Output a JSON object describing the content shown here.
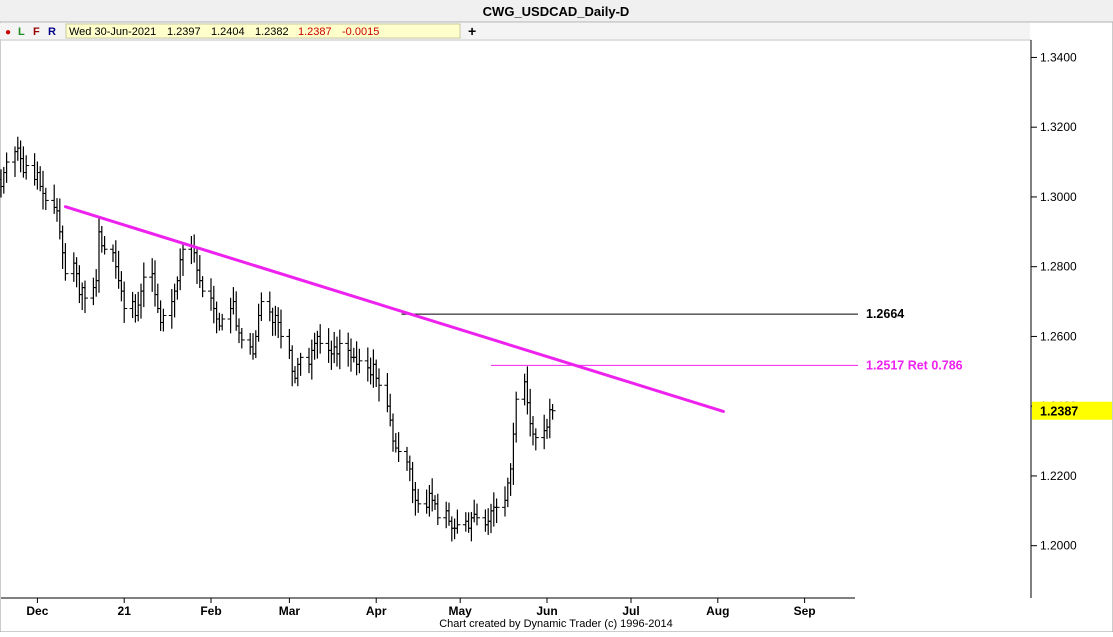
{
  "window": {
    "title": "CWG_USDCAD_Daily-D"
  },
  "toolbar": {
    "dot": "●",
    "btn_l": "L",
    "btn_f": "F",
    "btn_r": "R",
    "date": "Wed 30-Jun-2021",
    "open": "1.2397",
    "high": "1.2404",
    "low": "1.2382",
    "close": "1.2387",
    "change": "-0.0015",
    "crosshair": "+"
  },
  "footer": {
    "credit": "Chart created by Dynamic Trader  (c) 1996-2014"
  },
  "colors": {
    "trendline": "#ee22ee",
    "retracement": "#ee22ee",
    "bars": "#000000",
    "price_marker": "#ffff00",
    "change_negative": "#cc0000"
  },
  "chart_data": {
    "type": "ohlc",
    "yaxis": {
      "ylim": [
        1.185,
        1.345
      ],
      "ticks": [
        1.34,
        1.32,
        1.3,
        1.28,
        1.26,
        1.24,
        1.22,
        1.2
      ],
      "tick_labels": [
        "1.3400",
        "1.3200",
        "1.3000",
        "1.2800",
        "1.2600",
        "1.2400",
        "1.2200",
        "1.2000"
      ],
      "side": "right"
    },
    "xaxis": {
      "start": "2020-11-18",
      "end": "2021-09-19",
      "tick_dates": [
        "2020-12-01",
        "2021-01-01",
        "2021-02-01",
        "2021-03-01",
        "2021-04-01",
        "2021-05-01",
        "2021-06-01",
        "2021-07-01",
        "2021-08-01",
        "2021-09-01"
      ],
      "tick_labels": [
        "Dec",
        "21",
        "Feb",
        "Mar",
        "Apr",
        "May",
        "Jun",
        "Jul",
        "Aug",
        "Sep"
      ]
    },
    "last_price": {
      "value": 1.2387,
      "label": "1.2387"
    },
    "closes": [
      1.303,
      1.307,
      1.31,
      1.313,
      1.314,
      1.311,
      1.307,
      1.309,
      1.305,
      1.307,
      1.303,
      1.301,
      1.299,
      1.297,
      1.296,
      1.29,
      1.284,
      1.278,
      1.281,
      1.278,
      1.272,
      1.274,
      1.271,
      1.274,
      1.276,
      1.29,
      1.286,
      1.285,
      1.284,
      1.28,
      1.276,
      1.273,
      1.268,
      1.27,
      1.266,
      1.269,
      1.273,
      1.277,
      1.278,
      1.272,
      1.268,
      1.264,
      1.266,
      1.27,
      1.273,
      1.276,
      1.282,
      1.285,
      1.286,
      1.284,
      1.279,
      1.276,
      1.273,
      1.271,
      1.268,
      1.265,
      1.263,
      1.265,
      1.268,
      1.27,
      1.263,
      1.261,
      1.259,
      1.257,
      1.255,
      1.26,
      1.266,
      1.27,
      1.267,
      1.264,
      1.266,
      1.264,
      1.26,
      1.256,
      1.25,
      1.248,
      1.252,
      1.254,
      1.252,
      1.256,
      1.258,
      1.26,
      1.258,
      1.256,
      1.255,
      1.257,
      1.255,
      1.258,
      1.256,
      1.254,
      1.254,
      1.252,
      1.253,
      1.251,
      1.249,
      1.252,
      1.248,
      1.246,
      1.24,
      1.236,
      1.23,
      1.228,
      1.227,
      1.224,
      1.222,
      1.216,
      1.213,
      1.212,
      1.211,
      1.215,
      1.213,
      1.212,
      1.208,
      1.21,
      1.207,
      1.205,
      1.205,
      1.206,
      1.207,
      1.205,
      1.208,
      1.209,
      1.208,
      1.206,
      1.207,
      1.21,
      1.211,
      1.211,
      1.213,
      1.218,
      1.222,
      1.232,
      1.242,
      1.247,
      1.241,
      1.235,
      1.232,
      1.231,
      1.233,
      1.234,
      1.239,
      1.2387
    ],
    "trendline": {
      "from": {
        "date": "2020-12-11",
        "value": 1.2972
      },
      "to": {
        "date": "2021-08-03",
        "value": 1.2385
      }
    },
    "levels": [
      {
        "value": 1.2664,
        "label": "1.2664",
        "from_date": "2021-04-10"
      },
      {
        "value": 1.2517,
        "label": "1.2517 Ret 0.786",
        "from_date": "2021-05-12"
      }
    ]
  }
}
